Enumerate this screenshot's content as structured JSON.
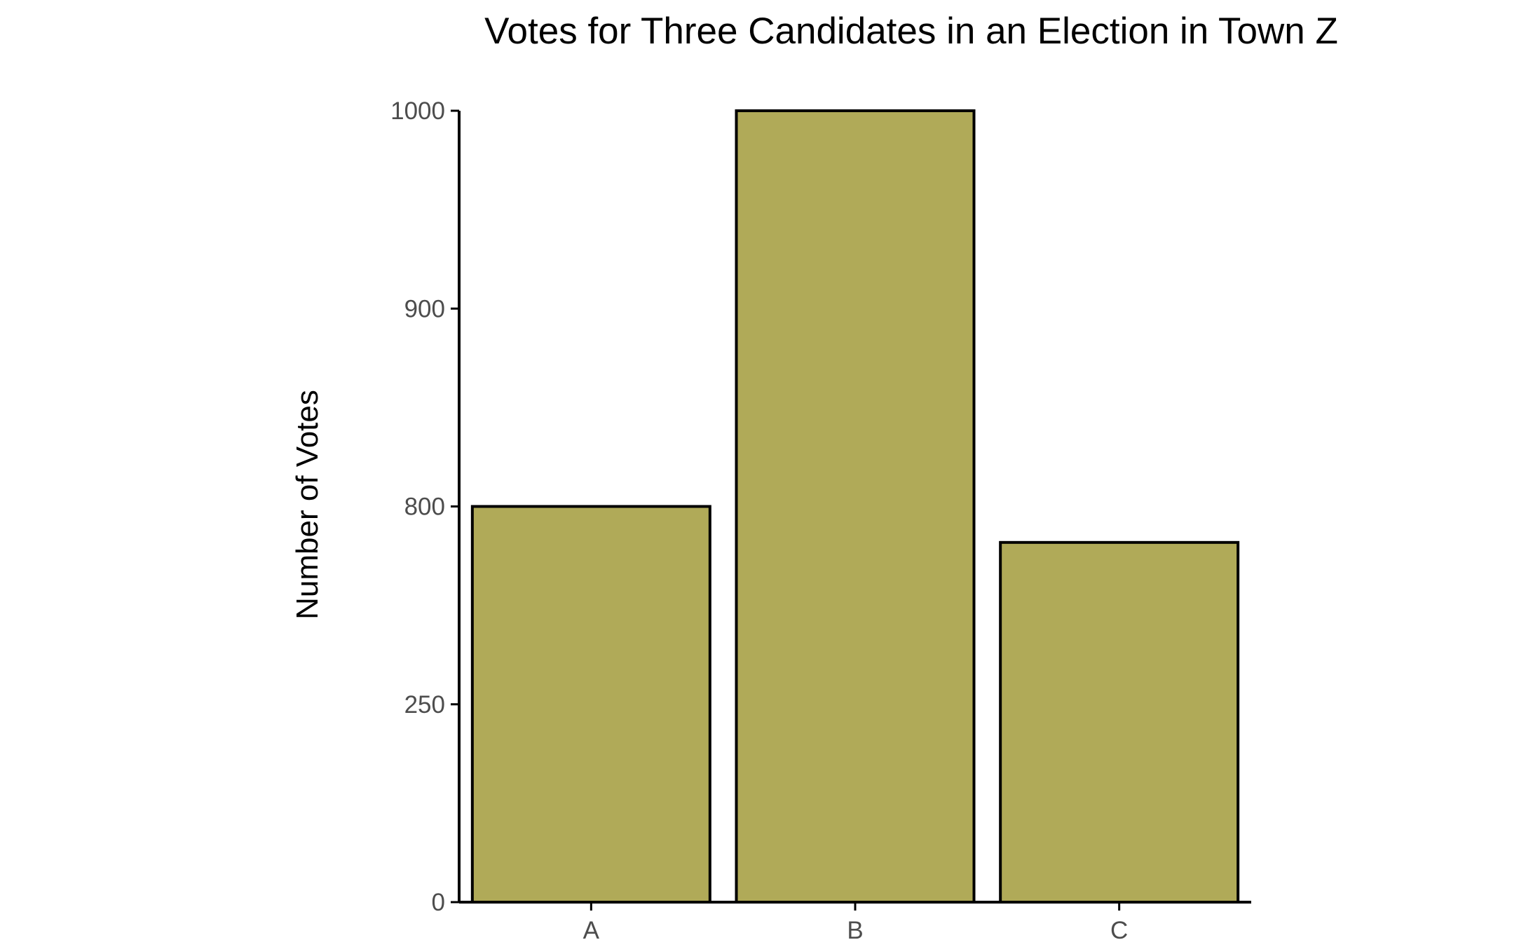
{
  "chart_data": {
    "type": "bar",
    "title": "Votes for Three Candidates in an Election in Town Z",
    "xlabel": "",
    "ylabel": "Number of Votes",
    "categories": [
      "A",
      "B",
      "C"
    ],
    "values": [
      800,
      1000,
      700
    ],
    "yticks": [
      {
        "label": "0",
        "value": 0
      },
      {
        "label": "250",
        "value": 250
      },
      {
        "label": "800",
        "value": 800
      },
      {
        "label": "900",
        "value": 900
      },
      {
        "label": "1000",
        "value": 1000
      }
    ],
    "ylim": [
      0,
      1000
    ],
    "grid": false,
    "legend": "none",
    "colors": {
      "bar_fill": "#b0aa58",
      "bar_stroke": "#000000"
    }
  }
}
